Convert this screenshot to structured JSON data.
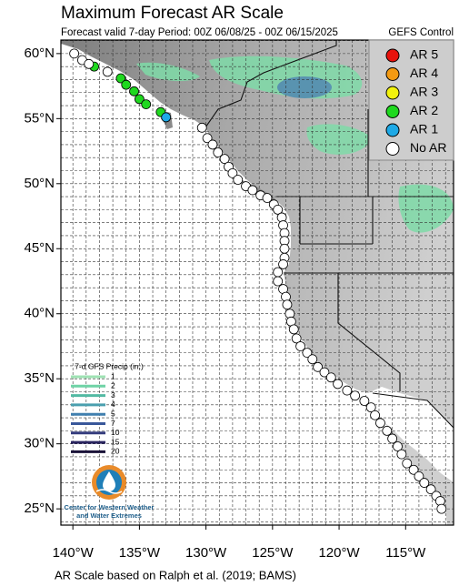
{
  "header": {
    "title": "Maximum Forecast AR Scale",
    "subtitle": "Forecast valid 7-day Period: 00Z 06/08/25 - 00Z 06/15/2025"
  },
  "legend": {
    "title": "GEFS Control",
    "items": [
      {
        "label": "AR 5",
        "color": "#e8120c",
        "points": []
      },
      {
        "label": "AR 4",
        "color": "#f39a12",
        "points": []
      },
      {
        "label": "AR 3",
        "color": "#f2f20c",
        "points": []
      },
      {
        "label": "AR 2",
        "color": "#1fd81f",
        "points": [
          [
            -138.4,
            59.0
          ],
          [
            -136.4,
            58.1
          ],
          [
            -136.0,
            57.6
          ],
          [
            -135.4,
            57.1
          ],
          [
            -135.0,
            56.5
          ],
          [
            -134.5,
            56.1
          ],
          [
            -133.4,
            55.5
          ]
        ]
      },
      {
        "label": "AR 1",
        "color": "#1ea9e6",
        "points": [
          [
            -133.0,
            55.1
          ]
        ]
      },
      {
        "label": "No AR",
        "color": "#ffffff",
        "points": [
          [
            -139.9,
            60.0
          ],
          [
            -139.3,
            59.5
          ],
          [
            -138.8,
            59.2
          ],
          [
            -137.4,
            58.6
          ],
          [
            -130.3,
            54.3
          ],
          [
            -129.9,
            53.5
          ],
          [
            -129.5,
            53.0
          ],
          [
            -129.1,
            52.4
          ],
          [
            -128.6,
            51.9
          ],
          [
            -128.3,
            51.3
          ],
          [
            -128.0,
            50.8
          ],
          [
            -127.6,
            50.3
          ],
          [
            -127.0,
            49.8
          ],
          [
            -126.5,
            49.5
          ],
          [
            -125.9,
            49.1
          ],
          [
            -125.4,
            48.9
          ],
          [
            -124.9,
            48.4
          ],
          [
            -124.6,
            48.0
          ],
          [
            -124.3,
            47.4
          ],
          [
            -124.2,
            46.8
          ],
          [
            -124.1,
            46.2
          ],
          [
            -124.1,
            45.6
          ],
          [
            -124.1,
            45.0
          ],
          [
            -124.1,
            44.3
          ],
          [
            -124.2,
            43.8
          ],
          [
            -124.6,
            43.2
          ],
          [
            -124.6,
            42.5
          ],
          [
            -124.2,
            41.9
          ],
          [
            -124.0,
            41.3
          ],
          [
            -123.9,
            40.7
          ],
          [
            -123.7,
            40.0
          ],
          [
            -123.6,
            39.4
          ],
          [
            -123.4,
            38.8
          ],
          [
            -123.2,
            38.1
          ],
          [
            -122.9,
            37.5
          ],
          [
            -122.4,
            37.0
          ],
          [
            -122.0,
            36.5
          ],
          [
            -121.6,
            35.9
          ],
          [
            -121.1,
            35.5
          ],
          [
            -120.6,
            35.1
          ],
          [
            -120.1,
            34.6
          ],
          [
            -119.4,
            34.1
          ],
          [
            -118.8,
            33.7
          ],
          [
            -118.1,
            33.3
          ],
          [
            -117.6,
            32.8
          ],
          [
            -117.3,
            32.2
          ],
          [
            -116.9,
            31.6
          ],
          [
            -116.4,
            31.0
          ],
          [
            -116.0,
            30.4
          ],
          [
            -115.6,
            29.8
          ],
          [
            -115.3,
            29.2
          ],
          [
            -114.9,
            28.5
          ],
          [
            -114.4,
            28.0
          ],
          [
            -114.0,
            27.5
          ],
          [
            -113.6,
            27.0
          ],
          [
            -113.1,
            26.5
          ],
          [
            -112.7,
            26.0
          ],
          [
            -112.4,
            25.6
          ],
          [
            -112.3,
            25.0
          ]
        ]
      }
    ]
  },
  "map": {
    "lon_range": [
      -140.9,
      -111.4
    ],
    "lat_range": [
      23.75,
      61.04
    ],
    "lat_ticks": [
      {
        "value": 60,
        "label": "60°N"
      },
      {
        "value": 55,
        "label": "55°N"
      },
      {
        "value": 50,
        "label": "50°N"
      },
      {
        "value": 45,
        "label": "45°N"
      },
      {
        "value": 40,
        "label": "40°N"
      },
      {
        "value": 35,
        "label": "35°N"
      },
      {
        "value": 30,
        "label": "30°N"
      },
      {
        "value": 25,
        "label": "25°N"
      }
    ],
    "lon_ticks": [
      {
        "value": -140,
        "label": "140°W"
      },
      {
        "value": -135,
        "label": "135°W"
      },
      {
        "value": -130,
        "label": "130°W"
      },
      {
        "value": -125,
        "label": "125°W"
      },
      {
        "value": -120,
        "label": "120°W"
      },
      {
        "value": -115,
        "label": "115°W"
      }
    ]
  },
  "precip_legend": {
    "title": "7-d GFS Precip (in.)",
    "levels": [
      {
        "value": 1,
        "color": "#9fe3b4"
      },
      {
        "value": 2,
        "color": "#6fd3a6"
      },
      {
        "value": 3,
        "color": "#52b9a3"
      },
      {
        "value": 4,
        "color": "#4a9fae"
      },
      {
        "value": 5,
        "color": "#3f7fae"
      },
      {
        "value": 7,
        "color": "#39579a"
      },
      {
        "value": 10,
        "color": "#343c7d"
      },
      {
        "value": 15,
        "color": "#2a2560"
      },
      {
        "value": 20,
        "color": "#1a1238"
      }
    ]
  },
  "logo": {
    "lines": [
      "Center for Western Weather",
      "and Water Extremes"
    ]
  },
  "footer": "AR Scale based on Ralph et al. (2019; BAMS)"
}
